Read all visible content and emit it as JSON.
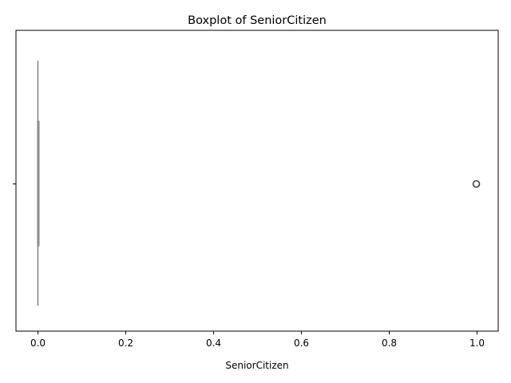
{
  "chart_data": {
    "type": "boxplot",
    "title": "Boxplot of SeniorCitizen",
    "xlabel": "SeniorCitizen",
    "ylabel": "",
    "xlim": [
      -0.05,
      1.05
    ],
    "x_ticks": [
      "0.0",
      "0.2",
      "0.4",
      "0.6",
      "0.8",
      "1.0"
    ],
    "x_tick_values": [
      0.0,
      0.2,
      0.4,
      0.6,
      0.8,
      1.0
    ],
    "box": {
      "min": 0.0,
      "q1": 0.0,
      "median": 0.0,
      "q3": 0.0,
      "max": 0.0
    },
    "outliers": [
      1.0
    ],
    "grid": false,
    "colors": {
      "box": "#7f7f7f",
      "outlier": "#3f3f3f",
      "axis": "#000000"
    }
  }
}
